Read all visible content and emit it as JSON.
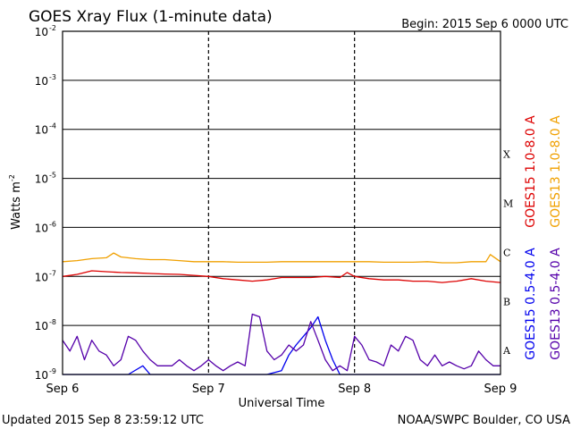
{
  "colors": {
    "goes15_long": "#dd0000",
    "goes13_long": "#f0a000",
    "goes15_short": "#0000ee",
    "goes13_short": "#5500aa",
    "grid": "#000000"
  },
  "chart_data": {
    "type": "line",
    "title": "GOES Xray Flux (1-minute data)",
    "begin_label": "Begin:  2015 Sep 6 0000 UTC",
    "xlabel": "Universal Time",
    "ylabel_base": "Watts m",
    "ylabel_exp": "-2",
    "yscale": "log",
    "ylim": [
      1e-09,
      0.01
    ],
    "xlim": [
      0,
      3
    ],
    "x_ticks": [
      {
        "x": 0,
        "label": "Sep 6"
      },
      {
        "x": 1,
        "label": "Sep 7"
      },
      {
        "x": 2,
        "label": "Sep 8"
      },
      {
        "x": 3,
        "label": "Sep 9"
      }
    ],
    "y_ticks": [
      {
        "value": 0.01,
        "exp": "-2"
      },
      {
        "value": 0.001,
        "exp": "-3"
      },
      {
        "value": 0.0001,
        "exp": "-4"
      },
      {
        "value": 1e-05,
        "exp": "-5"
      },
      {
        "value": 1e-06,
        "exp": "-6"
      },
      {
        "value": 1e-07,
        "exp": "-7"
      },
      {
        "value": 1e-08,
        "exp": "-8"
      },
      {
        "value": 1e-09,
        "exp": "-9"
      }
    ],
    "flare_classes": [
      {
        "label": "X",
        "value": 0.0001
      },
      {
        "label": "M",
        "value": 1e-05
      },
      {
        "label": "C",
        "value": 1e-06
      },
      {
        "label": "B",
        "value": 1e-07
      },
      {
        "label": "A",
        "value": 1e-08
      }
    ],
    "series": [
      {
        "name": "GOES15 1.0-8.0 A",
        "color_key": "goes15_long",
        "x": [
          0,
          0.1,
          0.2,
          0.3,
          0.4,
          0.5,
          0.6,
          0.7,
          0.8,
          0.9,
          1.0,
          1.1,
          1.2,
          1.3,
          1.4,
          1.5,
          1.6,
          1.7,
          1.8,
          1.9,
          1.95,
          2.0,
          2.1,
          2.2,
          2.3,
          2.4,
          2.5,
          2.6,
          2.7,
          2.8,
          2.9,
          3.0
        ],
        "y": [
          1e-07,
          1.1e-07,
          1.3e-07,
          1.25e-07,
          1.2e-07,
          1.18e-07,
          1.15e-07,
          1.12e-07,
          1.1e-07,
          1.05e-07,
          1e-07,
          9e-08,
          8.5e-08,
          8e-08,
          8.5e-08,
          9.5e-08,
          9.5e-08,
          9.5e-08,
          1e-07,
          9.5e-08,
          1.2e-07,
          1e-07,
          9e-08,
          8.5e-08,
          8.5e-08,
          8e-08,
          8e-08,
          7.5e-08,
          8e-08,
          9e-08,
          8e-08,
          7.5e-08
        ]
      },
      {
        "name": "GOES13 1.0-8.0 A",
        "color_key": "goes13_long",
        "x": [
          0,
          0.1,
          0.2,
          0.3,
          0.35,
          0.4,
          0.5,
          0.6,
          0.7,
          0.8,
          0.9,
          1.0,
          1.1,
          1.2,
          1.3,
          1.4,
          1.5,
          1.6,
          1.7,
          1.8,
          1.9,
          2.0,
          2.1,
          2.2,
          2.3,
          2.4,
          2.5,
          2.6,
          2.7,
          2.8,
          2.9,
          2.93,
          3.0
        ],
        "y": [
          2e-07,
          2.1e-07,
          2.3e-07,
          2.4e-07,
          3e-07,
          2.5e-07,
          2.3e-07,
          2.2e-07,
          2.2e-07,
          2.1e-07,
          2e-07,
          2e-07,
          2e-07,
          1.95e-07,
          1.95e-07,
          1.95e-07,
          2e-07,
          2e-07,
          2e-07,
          2e-07,
          2e-07,
          2e-07,
          2e-07,
          1.95e-07,
          1.95e-07,
          1.95e-07,
          2e-07,
          1.9e-07,
          1.9e-07,
          2e-07,
          2e-07,
          2.8e-07,
          2e-07
        ]
      },
      {
        "name": "GOES15 0.5-4.0 A",
        "color_key": "goes15_short",
        "x": [
          0,
          0.1,
          0.3,
          0.45,
          0.55,
          0.6,
          0.8,
          1.0,
          1.2,
          1.4,
          1.5,
          1.55,
          1.6,
          1.65,
          1.7,
          1.75,
          1.8,
          1.85,
          1.9,
          2.0,
          2.2,
          2.4,
          2.6,
          2.8,
          2.9,
          3.0
        ],
        "y": [
          1e-09,
          1e-09,
          1e-09,
          1e-09,
          1.5e-09,
          1e-09,
          1e-09,
          1e-09,
          1e-09,
          1e-09,
          1.2e-09,
          2.5e-09,
          4e-09,
          6e-09,
          9e-09,
          1.5e-08,
          5e-09,
          2e-09,
          1e-09,
          1e-09,
          1e-09,
          1e-09,
          1e-09,
          1e-09,
          1e-09,
          1e-09
        ]
      },
      {
        "name": "GOES13 0.5-4.0 A",
        "color_key": "goes13_short",
        "x": [
          0,
          0.05,
          0.1,
          0.15,
          0.2,
          0.25,
          0.3,
          0.35,
          0.4,
          0.45,
          0.5,
          0.55,
          0.6,
          0.65,
          0.7,
          0.75,
          0.8,
          0.85,
          0.9,
          0.95,
          1.0,
          1.05,
          1.1,
          1.15,
          1.2,
          1.25,
          1.3,
          1.35,
          1.4,
          1.45,
          1.5,
          1.55,
          1.6,
          1.65,
          1.7,
          1.75,
          1.8,
          1.85,
          1.9,
          1.95,
          2.0,
          2.05,
          2.1,
          2.15,
          2.2,
          2.25,
          2.3,
          2.35,
          2.4,
          2.45,
          2.5,
          2.55,
          2.6,
          2.65,
          2.7,
          2.75,
          2.8,
          2.85,
          2.9,
          2.95,
          3.0
        ],
        "y": [
          5e-09,
          3e-09,
          6e-09,
          2e-09,
          5e-09,
          3e-09,
          2.5e-09,
          1.5e-09,
          2e-09,
          6e-09,
          5e-09,
          3e-09,
          2e-09,
          1.5e-09,
          1.5e-09,
          1.5e-09,
          2e-09,
          1.5e-09,
          1.2e-09,
          1.5e-09,
          2e-09,
          1.5e-09,
          1.2e-09,
          1.5e-09,
          1.8e-09,
          1.5e-09,
          1.7e-08,
          1.5e-08,
          3e-09,
          2e-09,
          2.5e-09,
          4e-09,
          3e-09,
          4e-09,
          1.2e-08,
          5e-09,
          2e-09,
          1.2e-09,
          1.5e-09,
          1.2e-09,
          6e-09,
          4e-09,
          2e-09,
          1.8e-09,
          1.5e-09,
          4e-09,
          3e-09,
          6e-09,
          5e-09,
          2e-09,
          1.5e-09,
          2.5e-09,
          1.5e-09,
          1.8e-09,
          1.5e-09,
          1.3e-09,
          1.5e-09,
          3e-09,
          2e-09,
          1.5e-09,
          1.5e-09
        ]
      }
    ]
  },
  "footer": {
    "updated": "Updated 2015 Sep  8 23:59:12 UTC",
    "credit": "NOAA/SWPC Boulder, CO USA"
  }
}
